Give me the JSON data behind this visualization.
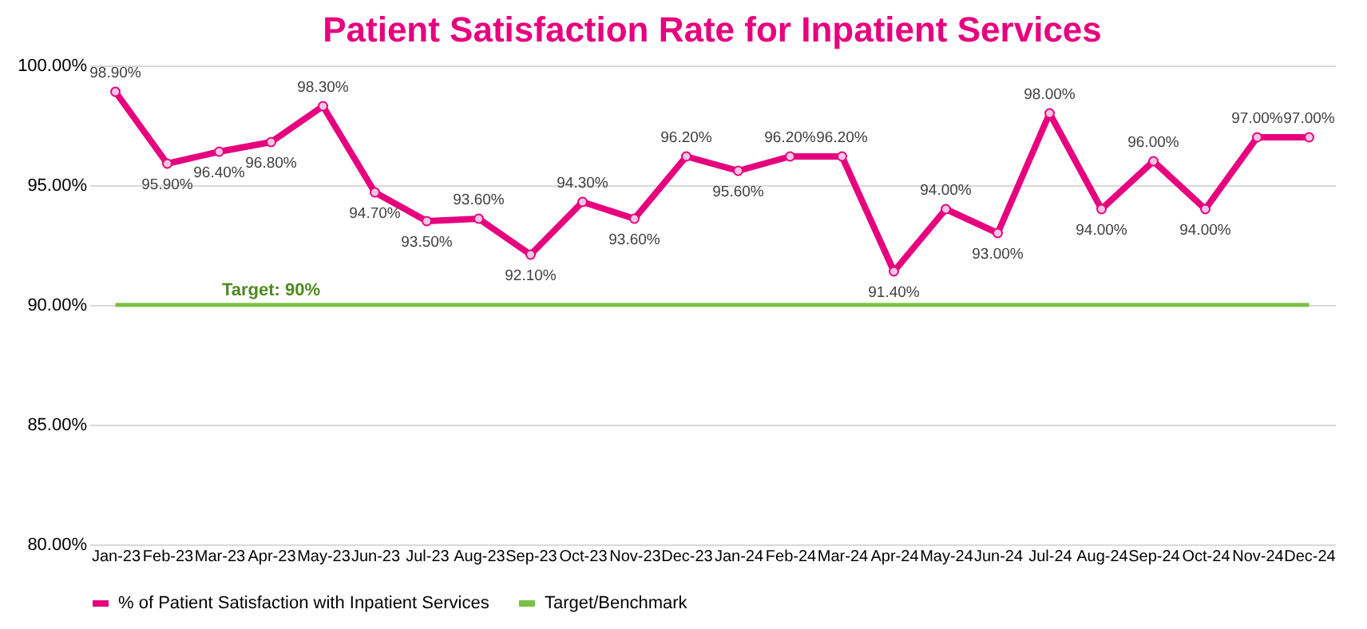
{
  "chart_data": {
    "type": "line",
    "title": "Patient Satisfaction Rate for Inpatient Services",
    "categories": [
      "Jan-23",
      "Feb-23",
      "Mar-23",
      "Apr-23",
      "May-23",
      "Jun-23",
      "Jul-23",
      "Aug-23",
      "Sep-23",
      "Oct-23",
      "Nov-23",
      "Dec-23",
      "Jan-24",
      "Feb-24",
      "Mar-24",
      "Apr-24",
      "May-24",
      "Jun-24",
      "Jul-24",
      "Aug-24",
      "Sep-24",
      "Oct-24",
      "Nov-24",
      "Dec-24"
    ],
    "series": [
      {
        "name": "% of Patient Satisfaction with Inpatient Services",
        "color": "#e6007e",
        "marker": "circle",
        "values": [
          98.9,
          95.9,
          96.4,
          96.8,
          98.3,
          94.7,
          93.5,
          93.6,
          92.1,
          94.3,
          93.6,
          96.2,
          95.6,
          96.2,
          96.2,
          91.4,
          94.0,
          93.0,
          98.0,
          94.0,
          96.0,
          94.0,
          97.0,
          97.0
        ],
        "value_labels": [
          "98.90%",
          "95.90%",
          "96.40%",
          "96.80%",
          "98.30%",
          "94.70%",
          "93.50%",
          "93.60%",
          "92.10%",
          "94.30%",
          "93.60%",
          "96.20%",
          "95.60%",
          "96.20%",
          "96.20%",
          "91.40%",
          "94.00%",
          "93.00%",
          "98.00%",
          "94.00%",
          "96.00%",
          "94.00%",
          "97.00%",
          "97.00%"
        ]
      },
      {
        "name": "Target/Benchmark",
        "color": "#7ac143",
        "marker": "none",
        "values": [
          90,
          90,
          90,
          90,
          90,
          90,
          90,
          90,
          90,
          90,
          90,
          90,
          90,
          90,
          90,
          90,
          90,
          90,
          90,
          90,
          90,
          90,
          90,
          90
        ]
      }
    ],
    "ylim": [
      80,
      100
    ],
    "yticks": [
      {
        "value": 80,
        "label": "80.00%"
      },
      {
        "value": 85,
        "label": "85.00%"
      },
      {
        "value": 90,
        "label": "90.00%"
      },
      {
        "value": 95,
        "label": "95.00%"
      },
      {
        "value": 100,
        "label": "100.00%"
      }
    ],
    "grid": "y",
    "legend": "bottom",
    "line_style": "solid",
    "annotations": [
      {
        "text": "Target: 90%",
        "x": "Apr-23",
        "y": 90
      }
    ]
  }
}
